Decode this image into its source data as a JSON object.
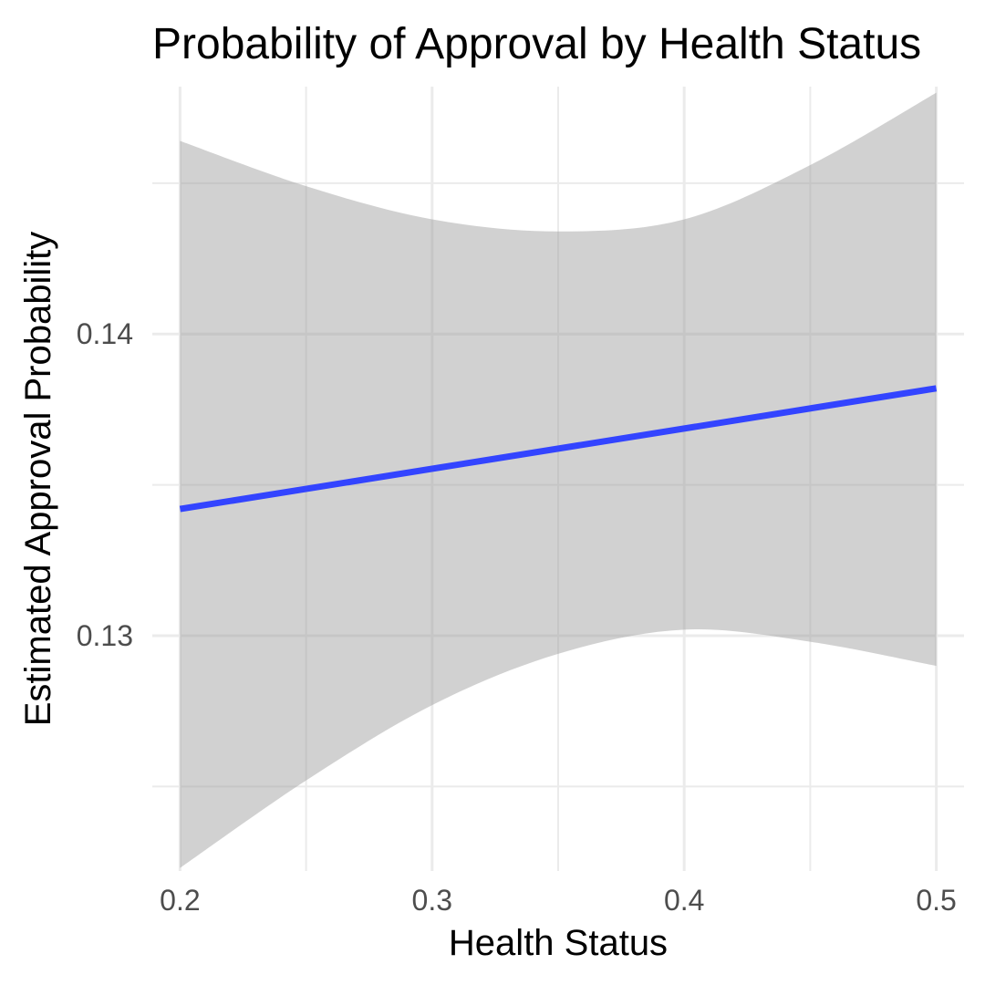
{
  "chart_data": {
    "type": "line",
    "title": "Probability of Approval by Health Status",
    "xlabel": "Health Status",
    "ylabel": "Estimated Approval Probability",
    "xlim": [
      0.189,
      0.511
    ],
    "ylim": [
      0.1222,
      0.1482
    ],
    "x_ticks": [
      "0.2",
      "0.3",
      "0.4",
      "0.5"
    ],
    "y_ticks": [
      "0.13",
      "0.14"
    ],
    "x_minor_grid": [
      0.25,
      0.35,
      0.45
    ],
    "y_minor_grid": [
      0.125,
      0.135,
      0.145
    ],
    "grid": true,
    "series": [
      {
        "x": [
          0.2,
          0.5
        ],
        "values": [
          0.1342,
          0.1382
        ],
        "color": "#3344ff"
      }
    ],
    "confidence_band": {
      "color": "#999999",
      "x": [
        0.2,
        0.25,
        0.3,
        0.35,
        0.4,
        0.45,
        0.5
      ],
      "upper": [
        0.1464,
        0.1449,
        0.1438,
        0.1434,
        0.1438,
        0.1456,
        0.148
      ],
      "lower": [
        0.1223,
        0.1252,
        0.1277,
        0.1294,
        0.1302,
        0.1298,
        0.129
      ]
    }
  }
}
